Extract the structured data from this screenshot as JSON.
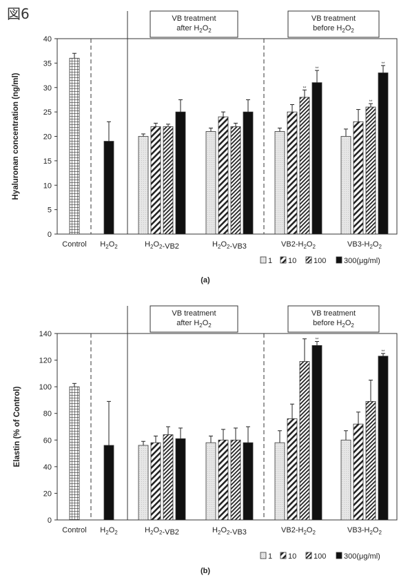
{
  "figure_label": "図6",
  "chart_data": [
    {
      "type": "bar",
      "panel_label": "(a)",
      "ylabel": "Hyaluronan concentration (ng/ml)",
      "ylim": [
        0,
        40
      ],
      "ytick_step": 5,
      "groups": [
        {
          "label": "Control",
          "bars": [
            {
              "key": "control",
              "value": 36,
              "error": 1
            }
          ]
        },
        {
          "label": "H2O2",
          "bars": [
            {
              "key": "h2o2",
              "value": 19,
              "error": 4
            }
          ]
        },
        {
          "label": "H2O2-VB2",
          "bars": [
            {
              "key": "1",
              "value": 20,
              "error": 0.5
            },
            {
              "key": "10",
              "value": 22,
              "error": 0.7
            },
            {
              "key": "100",
              "value": 22,
              "error": 0.5
            },
            {
              "key": "300",
              "value": 25,
              "error": 2.5
            }
          ]
        },
        {
          "label": "H2O2-VB3",
          "bars": [
            {
              "key": "1",
              "value": 21,
              "error": 0.7
            },
            {
              "key": "10",
              "value": 24,
              "error": 1
            },
            {
              "key": "100",
              "value": 22,
              "error": 0.7
            },
            {
              "key": "300",
              "value": 25,
              "error": 2.5
            }
          ]
        },
        {
          "label": "VB2-H2O2",
          "bars": [
            {
              "key": "1",
              "value": 21,
              "error": 0.7
            },
            {
              "key": "10",
              "value": 25,
              "error": 1.5
            },
            {
              "key": "100",
              "value": 28,
              "error": 1.5,
              "sig": "**"
            },
            {
              "key": "300",
              "value": 31,
              "error": 2.5,
              "sig": "**"
            }
          ]
        },
        {
          "label": "VB3-H2O2",
          "bars": [
            {
              "key": "1",
              "value": 20,
              "error": 1.5
            },
            {
              "key": "10",
              "value": 23,
              "error": 2.5
            },
            {
              "key": "100",
              "value": 26,
              "error": 0.7,
              "sig": "**"
            },
            {
              "key": "300",
              "value": 33,
              "error": 1.5,
              "sig": "**"
            }
          ]
        }
      ],
      "annotations": [
        "VB treatment\nafter H2O2",
        "VB treatment\nbefore H2O2"
      ],
      "legend": [
        "1",
        "10",
        "100",
        "300(μg/ml)"
      ]
    },
    {
      "type": "bar",
      "panel_label": "(b)",
      "ylabel": "Elastin   (% of Control)",
      "ylim": [
        0,
        140
      ],
      "ytick_step": 20,
      "groups": [
        {
          "label": "Control",
          "bars": [
            {
              "key": "control",
              "value": 100,
              "error": 2.5
            }
          ]
        },
        {
          "label": "H2O2",
          "bars": [
            {
              "key": "h2o2",
              "value": 56,
              "error": 33
            }
          ]
        },
        {
          "label": "H2O2-VB2",
          "bars": [
            {
              "key": "1",
              "value": 56,
              "error": 3
            },
            {
              "key": "10",
              "value": 58,
              "error": 5
            },
            {
              "key": "100",
              "value": 64,
              "error": 6
            },
            {
              "key": "300",
              "value": 61,
              "error": 8
            }
          ]
        },
        {
          "label": "H2O2-VB3",
          "bars": [
            {
              "key": "1",
              "value": 58,
              "error": 5
            },
            {
              "key": "10",
              "value": 60,
              "error": 8
            },
            {
              "key": "100",
              "value": 60,
              "error": 9
            },
            {
              "key": "300",
              "value": 58,
              "error": 12
            }
          ]
        },
        {
          "label": "VB2-H2O2",
          "bars": [
            {
              "key": "1",
              "value": 58,
              "error": 9
            },
            {
              "key": "10",
              "value": 76,
              "error": 11
            },
            {
              "key": "100",
              "value": 119,
              "error": 17
            },
            {
              "key": "300",
              "value": 131,
              "error": 3,
              "sig": "**"
            }
          ]
        },
        {
          "label": "VB3-H2O2",
          "bars": [
            {
              "key": "1",
              "value": 60,
              "error": 7
            },
            {
              "key": "10",
              "value": 72,
              "error": 9
            },
            {
              "key": "100",
              "value": 89,
              "error": 16
            },
            {
              "key": "300",
              "value": 123,
              "error": 2,
              "sig": "**"
            }
          ]
        }
      ],
      "annotations": [
        "VB treatment\nafter H2O2",
        "VB treatment\nbefore H2O2"
      ],
      "legend": [
        "1",
        "10",
        "100",
        "300(μg/ml)"
      ]
    }
  ]
}
